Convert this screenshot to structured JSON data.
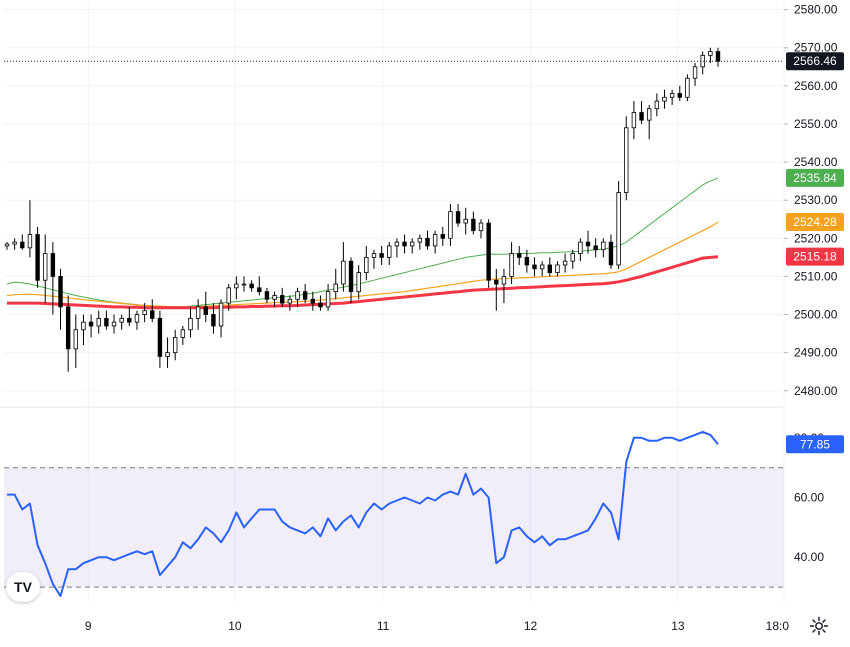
{
  "chart_data": [
    {
      "type": "candlestick",
      "title": "",
      "x_ticks": [
        "9",
        "10",
        "11",
        "12",
        "13",
        "18:0"
      ],
      "y_ticks": [
        "2480.00",
        "2490.00",
        "2500.00",
        "2510.00",
        "2520.00",
        "2530.00",
        "2540.00",
        "2550.00",
        "2560.00",
        "2570.00",
        "2580.00"
      ],
      "ylim": [
        2476,
        2582
      ],
      "last_price": 2566.46,
      "price_tags": [
        {
          "value": 2566.46,
          "label": "2566.46",
          "color": "#131722"
        },
        {
          "value": 2535.84,
          "label": "2535.84",
          "color": "#4caf50"
        },
        {
          "value": 2524.28,
          "label": "2524.28",
          "color": "#f7a21b"
        },
        {
          "value": 2515.18,
          "label": "2515.18",
          "color": "#f23645"
        }
      ],
      "candles": [
        [
          2518,
          2519,
          2517,
          2518.5
        ],
        [
          2518.5,
          2520,
          2517,
          2519
        ],
        [
          2519,
          2521,
          2517,
          2517.5
        ],
        [
          2517.5,
          2530,
          2515,
          2521
        ],
        [
          2521,
          2523,
          2507,
          2509
        ],
        [
          2509,
          2521,
          2503,
          2516
        ],
        [
          2516,
          2519,
          2500,
          2510
        ],
        [
          2510,
          2512,
          2496,
          2502
        ],
        [
          2502,
          2505,
          2485,
          2491
        ],
        [
          2491,
          2500,
          2486,
          2496
        ],
        [
          2496,
          2500,
          2492,
          2498
        ],
        [
          2498,
          2500,
          2494,
          2497
        ],
        [
          2497,
          2501,
          2495,
          2499
        ],
        [
          2499,
          2501,
          2496,
          2497
        ],
        [
          2497,
          2500,
          2495,
          2498
        ],
        [
          2498,
          2500,
          2496,
          2499
        ],
        [
          2499,
          2502,
          2497,
          2498
        ],
        [
          2498,
          2501,
          2496,
          2500
        ],
        [
          2500,
          2503,
          2498,
          2501
        ],
        [
          2501,
          2504,
          2498,
          2499
        ],
        [
          2499,
          2501,
          2486,
          2489
        ],
        [
          2489,
          2494,
          2486,
          2490
        ],
        [
          2490,
          2496,
          2488,
          2494
        ],
        [
          2494,
          2497,
          2492,
          2496
        ],
        [
          2496,
          2502,
          2494,
          2499
        ],
        [
          2499,
          2504,
          2496,
          2502
        ],
        [
          2502,
          2506,
          2498,
          2500
        ],
        [
          2500,
          2503,
          2495,
          2497
        ],
        [
          2497,
          2504,
          2494,
          2503
        ],
        [
          2503,
          2508,
          2501,
          2507
        ],
        [
          2507,
          2510,
          2504,
          2508
        ],
        [
          2508,
          2510,
          2506,
          2508
        ],
        [
          2508,
          2509,
          2506,
          2507
        ],
        [
          2507,
          2510,
          2505,
          2506
        ],
        [
          2506,
          2507,
          2503,
          2504
        ],
        [
          2504,
          2506,
          2502,
          2505
        ],
        [
          2505,
          2507,
          2502,
          2503
        ],
        [
          2503,
          2505,
          2501,
          2504
        ],
        [
          2504,
          2507,
          2502,
          2506
        ],
        [
          2506,
          2508,
          2503,
          2504
        ],
        [
          2504,
          2506,
          2501,
          2503
        ],
        [
          2503,
          2505,
          2501,
          2502
        ],
        [
          2502,
          2508,
          2501,
          2506
        ],
        [
          2506,
          2512,
          2504,
          2508
        ],
        [
          2508,
          2519,
          2506,
          2514
        ],
        [
          2514,
          2515,
          2503,
          2506
        ],
        [
          2506,
          2513,
          2504,
          2511
        ],
        [
          2511,
          2518,
          2509,
          2515
        ],
        [
          2515,
          2517,
          2512,
          2516
        ],
        [
          2516,
          2518,
          2513,
          2515
        ],
        [
          2515,
          2519,
          2513,
          2518
        ],
        [
          2518,
          2520,
          2515,
          2519
        ],
        [
          2519,
          2521,
          2516,
          2518
        ],
        [
          2518,
          2520,
          2516,
          2519
        ],
        [
          2519,
          2521,
          2517,
          2520
        ],
        [
          2520,
          2522,
          2517,
          2518
        ],
        [
          2518,
          2522,
          2516,
          2521
        ],
        [
          2521,
          2523,
          2518,
          2520
        ],
        [
          2520,
          2529,
          2518,
          2527
        ],
        [
          2527,
          2529,
          2523,
          2524
        ],
        [
          2524,
          2528,
          2521,
          2525
        ],
        [
          2525,
          2527,
          2521,
          2522
        ],
        [
          2522,
          2525,
          2520,
          2524
        ],
        [
          2524,
          2525,
          2507,
          2509
        ],
        [
          2509,
          2512,
          2501,
          2508
        ],
        [
          2508,
          2512,
          2503,
          2510
        ],
        [
          2510,
          2519,
          2508,
          2516
        ],
        [
          2516,
          2518,
          2513,
          2515
        ],
        [
          2515,
          2517,
          2511,
          2513
        ],
        [
          2513,
          2515,
          2510,
          2512
        ],
        [
          2512,
          2514,
          2510,
          2513
        ],
        [
          2513,
          2515,
          2510,
          2511
        ],
        [
          2511,
          2514,
          2510,
          2513
        ],
        [
          2513,
          2516,
          2511,
          2514
        ],
        [
          2514,
          2517,
          2512,
          2516
        ],
        [
          2516,
          2520,
          2514,
          2519
        ],
        [
          2519,
          2522,
          2516,
          2518
        ],
        [
          2518,
          2520,
          2515,
          2517
        ],
        [
          2517,
          2520,
          2515,
          2519
        ],
        [
          2519,
          2521,
          2512,
          2513
        ],
        [
          2513,
          2535,
          2512,
          2532
        ],
        [
          2532,
          2552,
          2530,
          2549
        ],
        [
          2549,
          2556,
          2546,
          2553
        ],
        [
          2553,
          2556,
          2550,
          2551
        ],
        [
          2551,
          2555,
          2546,
          2554
        ],
        [
          2554,
          2558,
          2552,
          2556
        ],
        [
          2556,
          2559,
          2554,
          2557
        ],
        [
          2557,
          2559,
          2555,
          2558
        ],
        [
          2558,
          2560,
          2556,
          2557
        ],
        [
          2557,
          2563,
          2556,
          2562
        ],
        [
          2562,
          2566,
          2560,
          2565
        ],
        [
          2565,
          2569,
          2563,
          2568
        ],
        [
          2568,
          2570,
          2566,
          2569
        ],
        [
          2569,
          2570,
          2565,
          2566.46
        ]
      ],
      "moving_averages": [
        {
          "color": "#4caf50",
          "values": [
            2508,
            2508.5,
            2508.3,
            2508,
            2507.5,
            2507,
            2506.5,
            2506,
            2505.5,
            2505,
            2504.6,
            2504.2,
            2503.8,
            2503.5,
            2503.2,
            2503,
            2502.8,
            2502.6,
            2502.4,
            2502.2,
            2502,
            2502,
            2502,
            2502,
            2502.2,
            2502.4,
            2502.6,
            2502.8,
            2503,
            2503.2,
            2503.4,
            2503.6,
            2503.8,
            2504,
            2504.2,
            2504.4,
            2504.6,
            2504.8,
            2505,
            2505.3,
            2505.6,
            2506,
            2506.4,
            2506.8,
            2507.2,
            2507.6,
            2508,
            2508.5,
            2509,
            2509.5,
            2510,
            2510.5,
            2511,
            2511.5,
            2512,
            2512.5,
            2513,
            2513.5,
            2514,
            2514.5,
            2515,
            2515.3,
            2515.6,
            2515.8,
            2515.8,
            2515.8,
            2515.9,
            2516,
            2516,
            2516.1,
            2516.2,
            2516.2,
            2516.3,
            2516.4,
            2516.5,
            2516.6,
            2516.8,
            2517,
            2517.2,
            2517.5,
            2518,
            2519,
            2520.5,
            2522,
            2523.5,
            2525,
            2526.5,
            2528,
            2529.5,
            2531,
            2532.5,
            2534,
            2535,
            2535.84
          ]
        },
        {
          "color": "#f7a21b",
          "values": [
            2505,
            2505.2,
            2505.3,
            2505.3,
            2505.2,
            2505,
            2504.8,
            2504.6,
            2504.4,
            2504.1,
            2503.9,
            2503.7,
            2503.5,
            2503.3,
            2503.1,
            2502.9,
            2502.7,
            2502.5,
            2502.4,
            2502.3,
            2502.2,
            2502.1,
            2502,
            2502,
            2502,
            2502.1,
            2502.2,
            2502.3,
            2502.4,
            2502.5,
            2502.6,
            2502.7,
            2502.8,
            2502.9,
            2503,
            2503.1,
            2503.2,
            2503.3,
            2503.4,
            2503.5,
            2503.6,
            2503.8,
            2504,
            2504.2,
            2504.4,
            2504.6,
            2504.8,
            2505,
            2505.2,
            2505.4,
            2505.6,
            2505.8,
            2506,
            2506.3,
            2506.6,
            2506.9,
            2507.2,
            2507.5,
            2507.8,
            2508.1,
            2508.4,
            2508.7,
            2509,
            2509.2,
            2509.3,
            2509.4,
            2509.5,
            2509.6,
            2509.7,
            2509.8,
            2509.9,
            2510,
            2510.1,
            2510.2,
            2510.3,
            2510.4,
            2510.5,
            2510.6,
            2510.7,
            2510.9,
            2511.2,
            2512,
            2513,
            2514,
            2515,
            2516,
            2517,
            2518,
            2519,
            2520,
            2521,
            2522,
            2523,
            2524.28
          ]
        },
        {
          "color": "#f23645",
          "values": [
            2503,
            2503,
            2503,
            2503,
            2503,
            2502.9,
            2502.8,
            2502.7,
            2502.6,
            2502.5,
            2502.4,
            2502.3,
            2502.2,
            2502.1,
            2502,
            2502,
            2501.9,
            2501.9,
            2501.8,
            2501.8,
            2501.8,
            2501.8,
            2501.8,
            2501.8,
            2501.8,
            2501.8,
            2501.8,
            2501.8,
            2501.9,
            2501.9,
            2502,
            2502,
            2502.1,
            2502.1,
            2502.2,
            2502.2,
            2502.3,
            2502.3,
            2502.4,
            2502.5,
            2502.6,
            2502.7,
            2502.8,
            2502.9,
            2503,
            2503.2,
            2503.4,
            2503.6,
            2503.8,
            2504,
            2504.2,
            2504.4,
            2504.6,
            2504.8,
            2505,
            2505.2,
            2505.4,
            2505.6,
            2505.8,
            2506,
            2506.2,
            2506.4,
            2506.5,
            2506.6,
            2506.7,
            2506.8,
            2506.9,
            2507,
            2507.1,
            2507.2,
            2507.3,
            2507.4,
            2507.5,
            2507.6,
            2507.7,
            2507.8,
            2507.9,
            2508,
            2508.1,
            2508.3,
            2508.6,
            2509,
            2509.5,
            2510,
            2510.6,
            2511.2,
            2511.8,
            2512.4,
            2513,
            2513.6,
            2514.2,
            2514.8,
            2515,
            2515.18
          ]
        }
      ]
    },
    {
      "type": "line",
      "title": "",
      "y_ticks": [
        "40.00",
        "60.00",
        "80.00"
      ],
      "ylim": [
        25,
        90
      ],
      "band": [
        30,
        70
      ],
      "last_value": 77.85,
      "value_tag": {
        "value": 77.85,
        "label": "77.85",
        "color": "#2962ff"
      },
      "values": [
        61,
        61,
        56,
        58,
        44,
        38,
        31,
        27,
        36,
        36,
        38,
        39,
        40,
        40,
        39,
        40,
        41,
        42,
        41,
        42,
        34,
        37,
        40,
        45,
        43,
        46,
        50,
        48,
        45,
        49,
        55,
        50,
        53,
        56,
        56,
        56,
        52,
        50,
        49,
        48,
        50,
        47,
        53,
        49,
        52,
        54,
        50,
        55,
        58,
        56,
        58,
        59,
        60,
        59,
        58,
        60,
        59,
        61,
        62,
        61,
        68,
        61,
        63,
        60,
        38,
        40,
        49,
        50,
        47,
        45,
        47,
        44,
        46,
        46,
        47,
        48,
        49,
        53,
        58,
        55,
        46,
        72,
        80,
        80,
        79,
        79,
        80,
        80,
        79,
        80,
        81,
        82,
        81,
        77.85
      ]
    }
  ]
}
